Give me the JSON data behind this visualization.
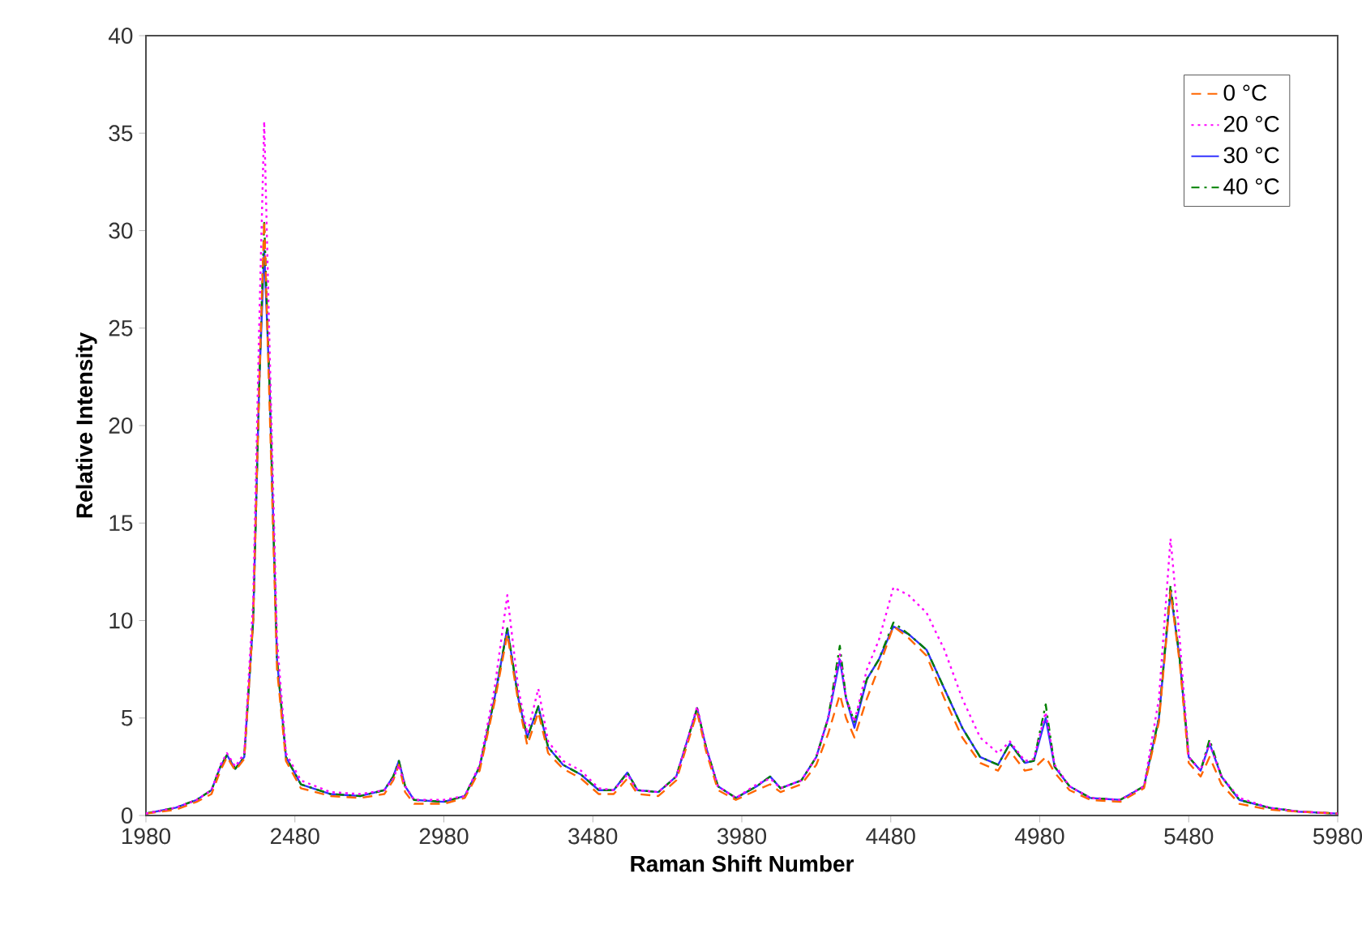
{
  "chart_data": {
    "type": "line",
    "xlabel": "Raman Shift Number",
    "ylabel": "Relative Intensity",
    "x": [
      1980,
      2080,
      2150,
      2200,
      2230,
      2252,
      2280,
      2310,
      2340,
      2360,
      2377,
      2395,
      2420,
      2450,
      2500,
      2600,
      2700,
      2780,
      2810,
      2829,
      2850,
      2880,
      2980,
      3050,
      3100,
      3150,
      3193,
      3230,
      3260,
      3297,
      3330,
      3380,
      3440,
      3500,
      3550,
      3596,
      3630,
      3700,
      3760,
      3800,
      3830,
      3860,
      3900,
      3960,
      4030,
      4075,
      4110,
      4180,
      4230,
      4270,
      4309,
      4330,
      4358,
      4400,
      4440,
      4489,
      4540,
      4600,
      4660,
      4720,
      4780,
      4840,
      4880,
      4930,
      4960,
      5000,
      5030,
      5080,
      5150,
      5250,
      5330,
      5380,
      5419,
      5450,
      5480,
      5520,
      5550,
      5590,
      5650,
      5750,
      5850,
      5980
    ],
    "series": [
      {
        "name": "0 °C",
        "color": "#ff6600",
        "line_style": "dashed",
        "values": [
          0.1,
          0.3,
          0.7,
          1.1,
          2.3,
          3.0,
          2.3,
          2.9,
          10,
          22,
          30.5,
          21,
          7.5,
          2.8,
          1.4,
          1.0,
          0.9,
          1.1,
          1.8,
          2.6,
          1.2,
          0.6,
          0.6,
          0.9,
          2.3,
          5.8,
          9.3,
          5.8,
          3.6,
          5.3,
          3.2,
          2.4,
          1.9,
          1.1,
          1.1,
          1.9,
          1.1,
          1.0,
          1.8,
          3.8,
          5.3,
          3.3,
          1.3,
          0.8,
          1.3,
          1.6,
          1.2,
          1.6,
          2.6,
          4.2,
          6.2,
          5,
          4.0,
          6.0,
          7.6,
          9.7,
          9.1,
          8.2,
          6.0,
          4.0,
          2.7,
          2.3,
          3.3,
          2.3,
          2.4,
          3.0,
          2.2,
          1.3,
          0.8,
          0.7,
          1.4,
          4.8,
          11.5,
          7.8,
          2.7,
          2.0,
          3.0,
          1.6,
          0.6,
          0.3,
          0.2,
          0.1
        ]
      },
      {
        "name": "20 °C",
        "color": "#ff00ff",
        "line_style": "dotted",
        "values": [
          0.1,
          0.4,
          0.8,
          1.3,
          2.6,
          3.2,
          2.5,
          3.2,
          11,
          25,
          35.6,
          24,
          9,
          3.2,
          1.8,
          1.2,
          1.1,
          1.3,
          1.9,
          2.6,
          1.5,
          0.8,
          0.8,
          1.0,
          2.6,
          6.5,
          11.3,
          6.5,
          4.2,
          6.5,
          3.8,
          2.8,
          2.3,
          1.4,
          1.3,
          2.1,
          1.3,
          1.2,
          2.0,
          4,
          5.6,
          3.5,
          1.5,
          0.9,
          1.6,
          1.9,
          1.4,
          1.8,
          3.0,
          5,
          8.3,
          6,
          4.8,
          7.5,
          9,
          11.7,
          11.3,
          10.4,
          8.5,
          6,
          4,
          3.2,
          3.8,
          2.8,
          2.9,
          5.3,
          2.6,
          1.5,
          0.9,
          0.8,
          1.5,
          6,
          14.2,
          9,
          3,
          2.3,
          3.7,
          2.0,
          0.9,
          0.4,
          0.2,
          0.1
        ]
      },
      {
        "name": "30 °C",
        "color": "#3333ff",
        "line_style": "solid",
        "values": [
          0.1,
          0.4,
          0.8,
          1.3,
          2.5,
          3.1,
          2.4,
          3.0,
          10,
          22,
          29,
          22,
          8,
          3,
          1.6,
          1.1,
          1.0,
          1.3,
          2.0,
          2.8,
          1.5,
          0.8,
          0.7,
          1.0,
          2.5,
          6,
          9.6,
          6,
          4.0,
          5.6,
          3.5,
          2.6,
          2.1,
          1.3,
          1.3,
          2.2,
          1.3,
          1.2,
          2.0,
          4,
          5.5,
          3.5,
          1.5,
          0.9,
          1.5,
          2.0,
          1.4,
          1.8,
          3.0,
          5,
          8.0,
          6,
          4.5,
          7.0,
          8,
          9.7,
          9.3,
          8.5,
          6.5,
          4.5,
          3.0,
          2.6,
          3.7,
          2.7,
          2.8,
          5.0,
          2.5,
          1.5,
          0.9,
          0.8,
          1.5,
          5,
          11.5,
          8,
          3,
          2.3,
          3.7,
          2.0,
          0.8,
          0.4,
          0.2,
          0.1
        ]
      },
      {
        "name": "40 °C",
        "color": "#008000",
        "line_style": "dashdot",
        "values": [
          0.1,
          0.4,
          0.8,
          1.3,
          2.5,
          3.1,
          2.4,
          3.0,
          10,
          22,
          30.4,
          22,
          8,
          3,
          1.6,
          1.1,
          1.0,
          1.3,
          2.0,
          2.8,
          1.5,
          0.8,
          0.7,
          1.0,
          2.5,
          6,
          9.6,
          6,
          4.0,
          5.6,
          3.5,
          2.6,
          2.1,
          1.3,
          1.3,
          2.2,
          1.3,
          1.2,
          2.0,
          4,
          5.5,
          3.5,
          1.5,
          0.9,
          1.5,
          2.0,
          1.4,
          1.8,
          3.0,
          5,
          8.7,
          6,
          4.8,
          7.0,
          8,
          9.9,
          9.3,
          8.5,
          6.5,
          4.5,
          3.0,
          2.6,
          3.7,
          2.7,
          2.8,
          5.7,
          2.5,
          1.5,
          0.9,
          0.8,
          1.5,
          5,
          11.8,
          8,
          3,
          2.3,
          3.9,
          2.0,
          0.8,
          0.4,
          0.2,
          0.1
        ]
      }
    ],
    "xlim": [
      1980,
      5980
    ],
    "xticks": [
      1980,
      2480,
      2980,
      3480,
      3980,
      4480,
      4980,
      5480,
      5980
    ],
    "ylim": [
      0,
      40
    ],
    "yticks": [
      0,
      5,
      10,
      15,
      20,
      25,
      30,
      35,
      40
    ],
    "grid": false,
    "legend": "top right",
    "marker": "none"
  }
}
